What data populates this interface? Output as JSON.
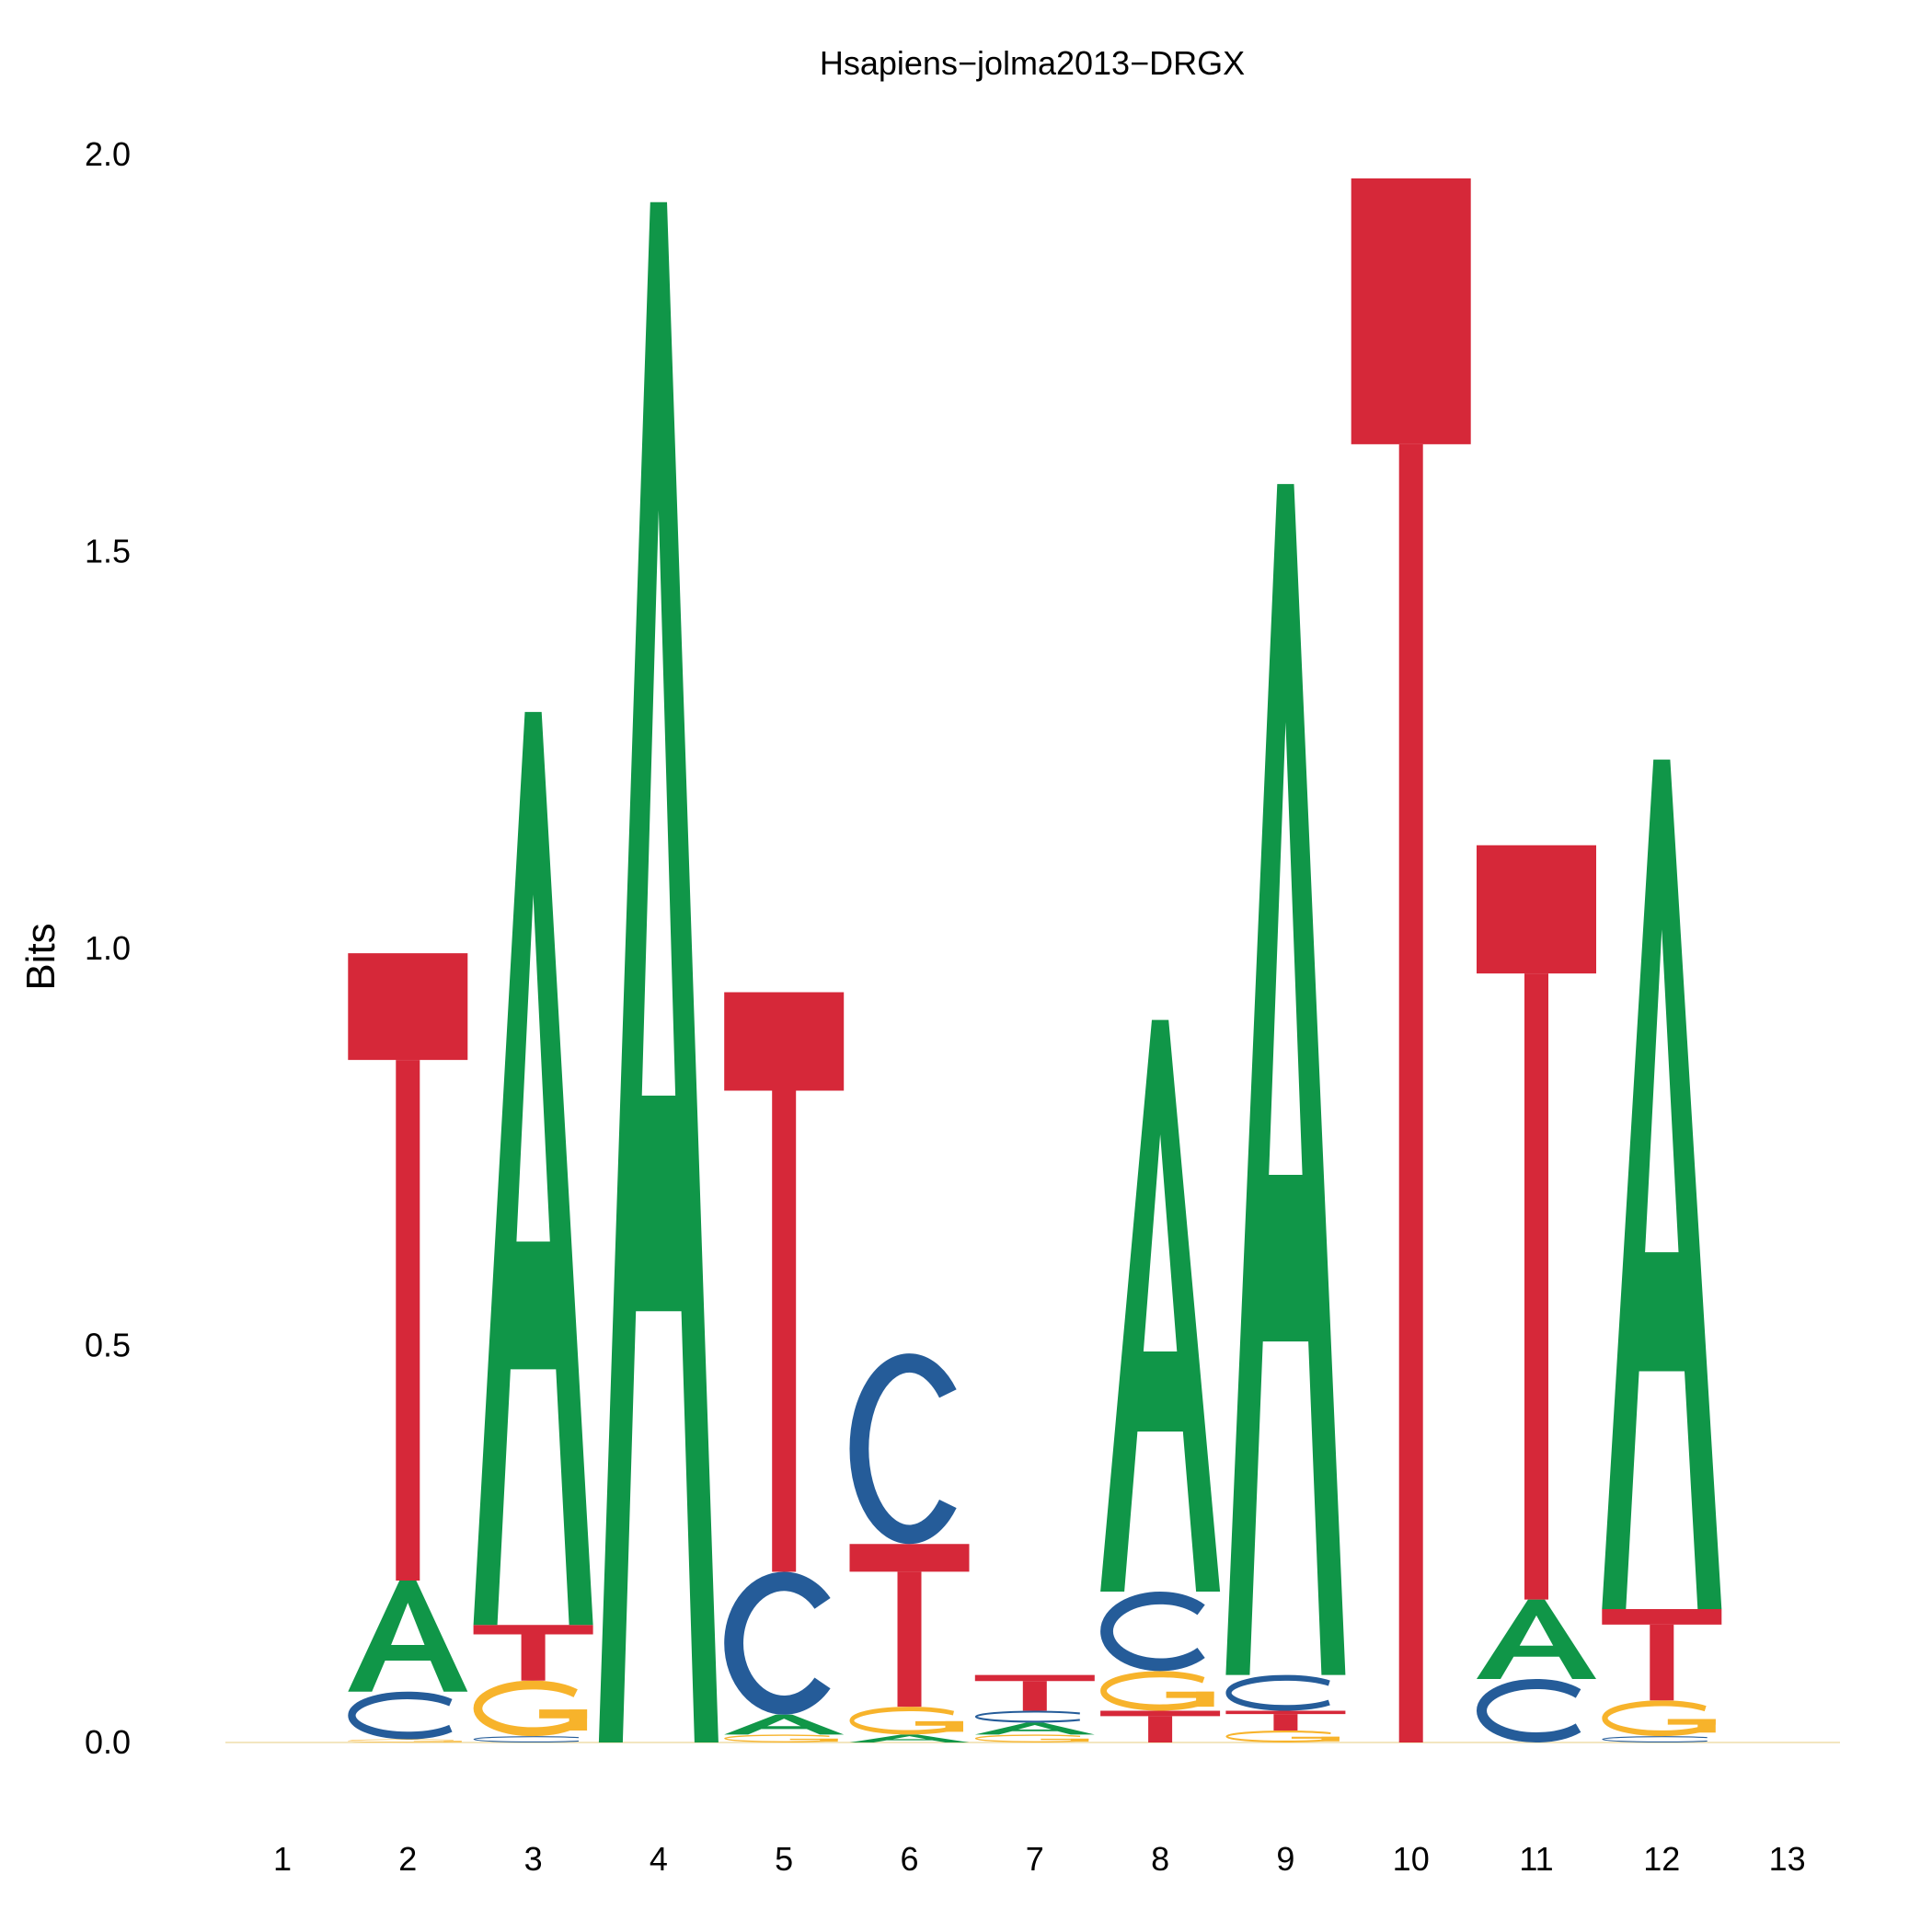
{
  "chart_data": {
    "type": "sequence-logo",
    "title": "Hsapiens−jolma2013−DRGX",
    "ylabel": "Bits",
    "xlabel": "",
    "ylim": [
      0,
      2
    ],
    "y_ticks": [
      "0.0",
      "0.5",
      "1.0",
      "1.5",
      "2.0"
    ],
    "x_ticks": [
      "1",
      "2",
      "3",
      "4",
      "5",
      "6",
      "7",
      "8",
      "9",
      "10",
      "11",
      "12",
      "13"
    ],
    "grid": false,
    "legend": "none",
    "colors": {
      "A": "#109648",
      "C": "#255C99",
      "G": "#F7B32B",
      "T": "#D62839"
    },
    "positions": [
      {
        "pos": 1,
        "letters": []
      },
      {
        "pos": 2,
        "letters": [
          {
            "base": "G",
            "height": 0.004
          },
          {
            "base": "C",
            "height": 0.06
          },
          {
            "base": "A",
            "height": 0.14
          },
          {
            "base": "T",
            "height": 0.79
          }
        ]
      },
      {
        "pos": 3,
        "letters": [
          {
            "base": "C",
            "height": 0.008
          },
          {
            "base": "G",
            "height": 0.07
          },
          {
            "base": "T",
            "height": 0.07
          },
          {
            "base": "A",
            "height": 1.15
          }
        ]
      },
      {
        "pos": 4,
        "letters": [
          {
            "base": "A",
            "height": 1.94
          }
        ]
      },
      {
        "pos": 5,
        "letters": [
          {
            "base": "G",
            "height": 0.01
          },
          {
            "base": "A",
            "height": 0.025
          },
          {
            "base": "C",
            "height": 0.18
          },
          {
            "base": "T",
            "height": 0.73
          }
        ]
      },
      {
        "pos": 6,
        "letters": [
          {
            "base": "A",
            "height": 0.01
          },
          {
            "base": "G",
            "height": 0.035
          },
          {
            "base": "T",
            "height": 0.205
          },
          {
            "base": "C",
            "height": 0.24
          }
        ]
      },
      {
        "pos": 7,
        "letters": [
          {
            "base": "G",
            "height": 0.01
          },
          {
            "base": "A",
            "height": 0.015
          },
          {
            "base": "C",
            "height": 0.015
          },
          {
            "base": "T",
            "height": 0.045
          }
        ]
      },
      {
        "pos": 8,
        "letters": [
          {
            "base": "T",
            "height": 0.04
          },
          {
            "base": "G",
            "height": 0.05
          },
          {
            "base": "C",
            "height": 0.1
          },
          {
            "base": "A",
            "height": 0.72
          }
        ]
      },
      {
        "pos": 9,
        "letters": [
          {
            "base": "G",
            "height": 0.015
          },
          {
            "base": "T",
            "height": 0.025
          },
          {
            "base": "C",
            "height": 0.045
          },
          {
            "base": "A",
            "height": 1.5
          }
        ]
      },
      {
        "pos": 10,
        "letters": [
          {
            "base": "T",
            "height": 1.97
          }
        ]
      },
      {
        "pos": 11,
        "letters": [
          {
            "base": "C",
            "height": 0.08
          },
          {
            "base": "A",
            "height": 0.1
          },
          {
            "base": "T",
            "height": 0.95
          }
        ]
      },
      {
        "pos": 12,
        "letters": [
          {
            "base": "C",
            "height": 0.008
          },
          {
            "base": "G",
            "height": 0.045
          },
          {
            "base": "T",
            "height": 0.115
          },
          {
            "base": "A",
            "height": 1.07
          }
        ]
      },
      {
        "pos": 13,
        "letters": []
      }
    ]
  }
}
